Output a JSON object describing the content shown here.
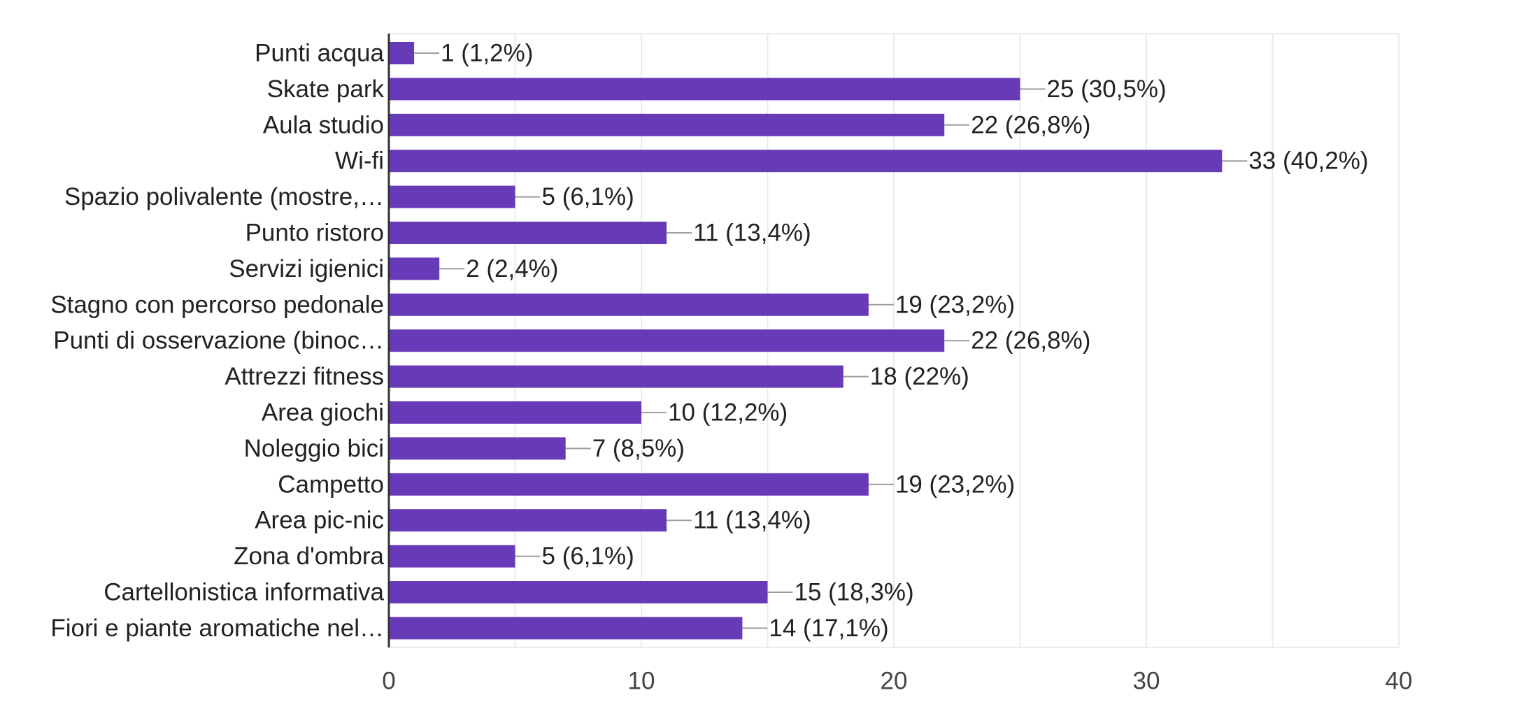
{
  "colors": {
    "bar": "#673ab7",
    "grid": "#ebebeb",
    "axis": "#333333",
    "leader": "#9e9e9e",
    "text": "#222222",
    "tick_text": "#444444"
  },
  "chart_data": {
    "type": "bar",
    "orientation": "horizontal",
    "title": "",
    "xlabel": "",
    "ylabel": "",
    "xlim": [
      0,
      40
    ],
    "x_ticks": [
      0,
      10,
      20,
      30,
      40
    ],
    "x_tick_labels": [
      "0",
      "10",
      "20",
      "30",
      "40"
    ],
    "grid": true,
    "categories": [
      "Punti acqua",
      "Skate park",
      "Aula studio",
      "Wi-fi",
      "Spazio polivalente (mostre,…",
      "Punto ristoro",
      "Servizi igienici",
      "Stagno con percorso pedonale",
      "Punti di osservazione (binoc…",
      "Attrezzi fitness",
      "Area giochi",
      "Noleggio bici",
      "Campetto",
      "Area pic-nic",
      "Zona d'ombra",
      "Cartellonistica informativa",
      "Fiori e piante aromatiche nel…"
    ],
    "values": [
      1,
      25,
      22,
      33,
      5,
      11,
      2,
      19,
      22,
      18,
      10,
      7,
      19,
      11,
      5,
      15,
      14
    ],
    "data_labels": [
      "1 (1,2%)",
      "25 (30,5%)",
      "22 (26,8%)",
      "33 (40,2%)",
      "5 (6,1%)",
      "11 (13,4%)",
      "2 (2,4%)",
      "19 (23,2%)",
      "22 (26,8%)",
      "18 (22%)",
      "10 (12,2%)",
      "7 (8,5%)",
      "19 (23,2%)",
      "11 (13,4%)",
      "5 (6,1%)",
      "15 (18,3%)",
      "14 (17,1%)"
    ]
  }
}
